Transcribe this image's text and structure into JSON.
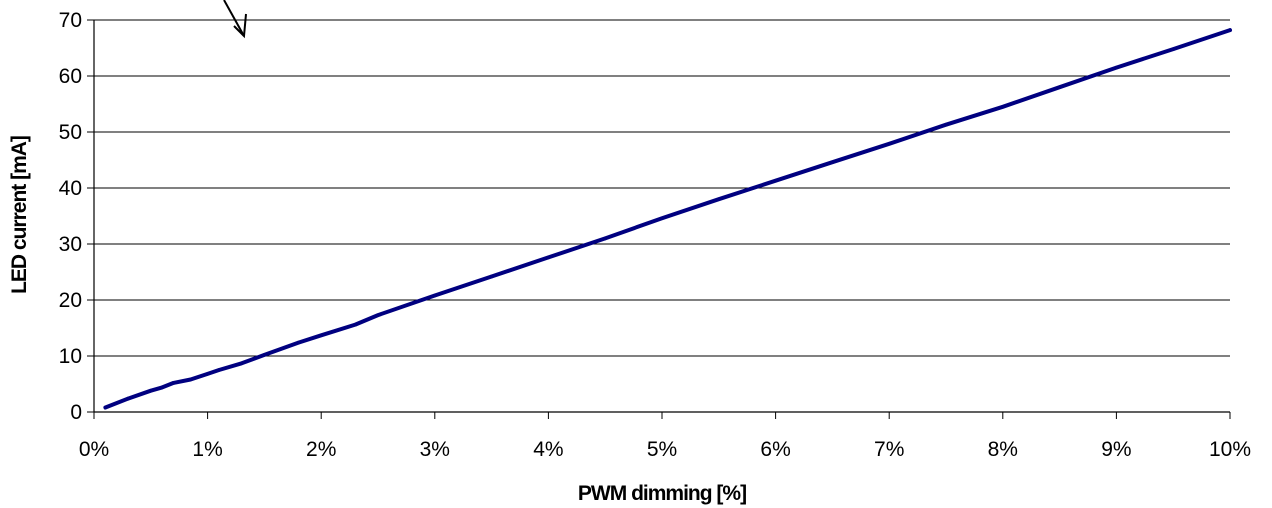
{
  "chart_data": {
    "type": "line",
    "xlabel": "PWM dimming [%]",
    "ylabel": "LED current [mA]",
    "xlim": [
      0,
      10
    ],
    "ylim": [
      0,
      70
    ],
    "x_tick_values": [
      0,
      1,
      2,
      3,
      4,
      5,
      6,
      7,
      8,
      9,
      10
    ],
    "x_tick_labels": [
      "0%",
      "1%",
      "2%",
      "3%",
      "4%",
      "5%",
      "6%",
      "7%",
      "8%",
      "9%",
      "10%"
    ],
    "y_tick_values": [
      0,
      10,
      20,
      30,
      40,
      50,
      60,
      70
    ],
    "y_tick_labels": [
      "0",
      "10",
      "20",
      "30",
      "40",
      "50",
      "60",
      "70"
    ],
    "grid": "horizontal",
    "legend": "none",
    "series": [
      {
        "color": "#000080",
        "x": [
          0.1,
          0.3,
          0.5,
          0.6,
          0.7,
          0.85,
          1.0,
          1.1,
          1.3,
          1.5,
          1.8,
          2.0,
          2.3,
          2.5,
          3.0,
          3.5,
          4.0,
          4.5,
          5.0,
          5.5,
          6.0,
          6.5,
          7.0,
          7.5,
          8.0,
          8.5,
          9.0,
          9.5,
          10.0
        ],
        "y": [
          0.8,
          2.4,
          3.8,
          4.4,
          5.2,
          5.8,
          6.8,
          7.5,
          8.7,
          10.2,
          12.4,
          13.7,
          15.6,
          17.3,
          20.8,
          24.2,
          27.6,
          31.0,
          34.6,
          38.0,
          41.3,
          44.6,
          47.9,
          51.3,
          54.5,
          58.0,
          61.5,
          64.8,
          68.2
        ]
      }
    ]
  },
  "annotation": {
    "shape": "arrow",
    "description": "arrow-pointing-down-left"
  }
}
